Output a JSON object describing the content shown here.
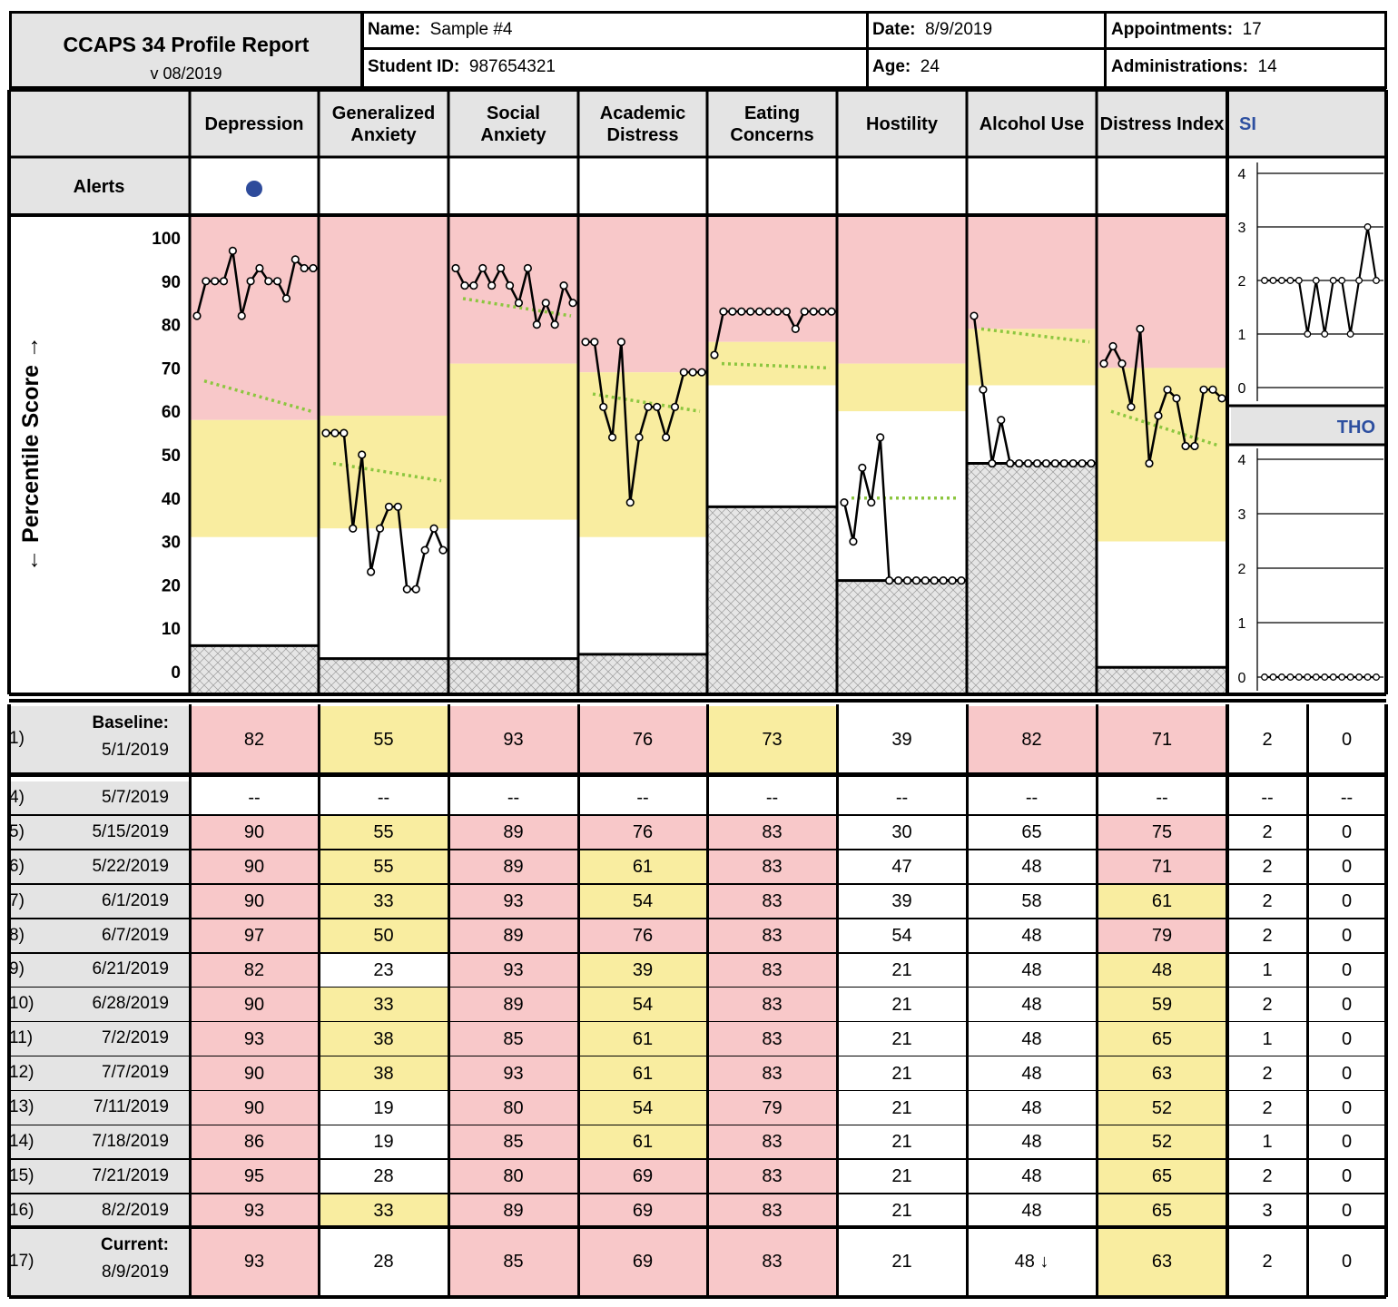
{
  "header": {
    "title": "CCAPS 34 Profile Report",
    "version": "v 08/2019",
    "name_label": "Name:",
    "name_value": "Sample #4",
    "student_id_label": "Student ID:",
    "student_id_value": "987654321",
    "date_label": "Date:",
    "date_value": "8/9/2019",
    "age_label": "Age:",
    "age_value": "24",
    "appointments_label": "Appointments:",
    "appointments_value": "17",
    "administrations_label": "Administrations:",
    "administrations_value": "14"
  },
  "alerts_label": "Alerts",
  "alerts_flag": [
    true,
    false,
    false,
    false,
    false,
    false,
    false,
    false
  ],
  "colors": {
    "pink": "#f8c8c9",
    "yellow": "#f9eda0",
    "gray": "#e4e4e4",
    "line": "#000000",
    "trend": "#8cc63f",
    "alert": "#2e4b9b",
    "si_label": "#2d4fa0"
  },
  "chart_data": {
    "type": "line",
    "ylabel": "← Percentile Score →",
    "ylim": [
      0,
      100
    ],
    "yticks": [
      "0",
      "10",
      "20",
      "30",
      "40",
      "50",
      "60",
      "70",
      "80",
      "90",
      "100"
    ],
    "scales": [
      {
        "name": "Depression",
        "label_lines": [
          "Depression"
        ],
        "values": [
          82,
          90,
          90,
          90,
          97,
          82,
          90,
          93,
          90,
          90,
          86,
          95,
          93,
          93
        ],
        "low": 6,
        "yellow": 31,
        "pink": 58,
        "trend": [
          67,
          60
        ]
      },
      {
        "name": "Generalized Anxiety",
        "label_lines": [
          "Generalized",
          "Anxiety"
        ],
        "values": [
          55,
          55,
          55,
          33,
          50,
          23,
          33,
          38,
          38,
          19,
          19,
          28,
          33,
          28
        ],
        "low": 3,
        "yellow": 33,
        "pink": 59,
        "trend": [
          48,
          44
        ]
      },
      {
        "name": "Social Anxiety",
        "label_lines": [
          "Social",
          "Anxiety"
        ],
        "values": [
          93,
          89,
          89,
          93,
          89,
          93,
          89,
          85,
          93,
          80,
          85,
          80,
          89,
          85
        ],
        "low": 3,
        "yellow": 35,
        "pink": 71,
        "trend": [
          86,
          82
        ]
      },
      {
        "name": "Academic Distress",
        "label_lines": [
          "Academic",
          "Distress"
        ],
        "values": [
          76,
          76,
          61,
          54,
          76,
          39,
          54,
          61,
          61,
          54,
          61,
          69,
          69,
          69
        ],
        "low": 4,
        "yellow": 31,
        "pink": 69,
        "trend": [
          64,
          60
        ]
      },
      {
        "name": "Eating Concerns",
        "label_lines": [
          "Eating",
          "Concerns"
        ],
        "values": [
          73,
          83,
          83,
          83,
          83,
          83,
          83,
          83,
          83,
          79,
          83,
          83,
          83,
          83
        ],
        "low": 38,
        "yellow": 66,
        "pink": 76,
        "trend": [
          71,
          70
        ]
      },
      {
        "name": "Hostility",
        "label_lines": [
          "Hostility"
        ],
        "values": [
          39,
          30,
          47,
          39,
          54,
          21,
          21,
          21,
          21,
          21,
          21,
          21,
          21,
          21
        ],
        "low": 21,
        "yellow": 60,
        "pink": 71,
        "trend": [
          40,
          40
        ]
      },
      {
        "name": "Alcohol Use",
        "label_lines": [
          "Alcohol Use"
        ],
        "values": [
          82,
          65,
          48,
          58,
          48,
          48,
          48,
          48,
          48,
          48,
          48,
          48,
          48,
          48
        ],
        "low": 48,
        "yellow": 66,
        "pink": 79,
        "trend": [
          79,
          76
        ]
      },
      {
        "name": "Distress Index",
        "label_lines": [
          "Distress Index"
        ],
        "values": [
          71,
          75,
          71,
          61,
          79,
          48,
          59,
          65,
          63,
          52,
          52,
          65,
          65,
          63
        ],
        "low": 1,
        "yellow": 30,
        "pink": 70,
        "trend": [
          60,
          52
        ]
      }
    ],
    "si": {
      "name": "SI",
      "ylim": [
        0,
        4
      ],
      "yticks": [
        "0",
        "1",
        "2",
        "3",
        "4"
      ],
      "values": [
        2,
        2,
        2,
        2,
        2,
        1,
        2,
        1,
        2,
        2,
        1,
        2,
        3,
        2
      ]
    },
    "tho": {
      "name": "THO",
      "ylim": [
        0,
        4
      ],
      "yticks": [
        "0",
        "1",
        "2",
        "3",
        "4"
      ],
      "values": [
        0,
        0,
        0,
        0,
        0,
        0,
        0,
        0,
        0,
        0,
        0,
        0,
        0,
        0
      ]
    }
  },
  "table": {
    "rows": [
      {
        "num": "1)",
        "label": "Baseline:",
        "date": "5/1/2019",
        "vals": [
          "82",
          "55",
          "93",
          "76",
          "73",
          "39",
          "82",
          "71",
          "2",
          "0"
        ],
        "colors": [
          "p",
          "y",
          "p",
          "p",
          "y",
          "w",
          "p",
          "p",
          "w",
          "w"
        ]
      },
      {
        "num": "4)",
        "label": "",
        "date": "5/7/2019",
        "vals": [
          "--",
          "--",
          "--",
          "--",
          "--",
          "--",
          "--",
          "--",
          "--",
          "--"
        ],
        "colors": [
          "w",
          "w",
          "w",
          "w",
          "w",
          "w",
          "w",
          "w",
          "w",
          "w"
        ]
      },
      {
        "num": "5)",
        "label": "",
        "date": "5/15/2019",
        "vals": [
          "90",
          "55",
          "89",
          "76",
          "83",
          "30",
          "65",
          "75",
          "2",
          "0"
        ],
        "colors": [
          "p",
          "y",
          "p",
          "p",
          "p",
          "w",
          "w",
          "p",
          "w",
          "w"
        ]
      },
      {
        "num": "6)",
        "label": "",
        "date": "5/22/2019",
        "vals": [
          "90",
          "55",
          "89",
          "61",
          "83",
          "47",
          "48",
          "71",
          "2",
          "0"
        ],
        "colors": [
          "p",
          "y",
          "p",
          "y",
          "p",
          "w",
          "w",
          "p",
          "w",
          "w"
        ]
      },
      {
        "num": "7)",
        "label": "",
        "date": "6/1/2019",
        "vals": [
          "90",
          "33",
          "93",
          "54",
          "83",
          "39",
          "58",
          "61",
          "2",
          "0"
        ],
        "colors": [
          "p",
          "y",
          "p",
          "y",
          "p",
          "w",
          "w",
          "y",
          "w",
          "w"
        ]
      },
      {
        "num": "8)",
        "label": "",
        "date": "6/7/2019",
        "vals": [
          "97",
          "50",
          "89",
          "76",
          "83",
          "54",
          "48",
          "79",
          "2",
          "0"
        ],
        "colors": [
          "p",
          "y",
          "p",
          "p",
          "p",
          "w",
          "w",
          "p",
          "w",
          "w"
        ]
      },
      {
        "num": "9)",
        "label": "",
        "date": "6/21/2019",
        "vals": [
          "82",
          "23",
          "93",
          "39",
          "83",
          "21",
          "48",
          "48",
          "1",
          "0"
        ],
        "colors": [
          "p",
          "w",
          "p",
          "y",
          "p",
          "w",
          "w",
          "y",
          "w",
          "w"
        ]
      },
      {
        "num": "10)",
        "label": "",
        "date": "6/28/2019",
        "vals": [
          "90",
          "33",
          "89",
          "54",
          "83",
          "21",
          "48",
          "59",
          "2",
          "0"
        ],
        "colors": [
          "p",
          "y",
          "p",
          "y",
          "p",
          "w",
          "w",
          "y",
          "w",
          "w"
        ]
      },
      {
        "num": "11)",
        "label": "",
        "date": "7/2/2019",
        "vals": [
          "93",
          "38",
          "85",
          "61",
          "83",
          "21",
          "48",
          "65",
          "1",
          "0"
        ],
        "colors": [
          "p",
          "y",
          "p",
          "y",
          "p",
          "w",
          "w",
          "y",
          "w",
          "w"
        ]
      },
      {
        "num": "12)",
        "label": "",
        "date": "7/7/2019",
        "vals": [
          "90",
          "38",
          "93",
          "61",
          "83",
          "21",
          "48",
          "63",
          "2",
          "0"
        ],
        "colors": [
          "p",
          "y",
          "p",
          "y",
          "p",
          "w",
          "w",
          "y",
          "w",
          "w"
        ]
      },
      {
        "num": "13)",
        "label": "",
        "date": "7/11/2019",
        "vals": [
          "90",
          "19",
          "80",
          "54",
          "79",
          "21",
          "48",
          "52",
          "2",
          "0"
        ],
        "colors": [
          "p",
          "w",
          "p",
          "y",
          "p",
          "w",
          "w",
          "y",
          "w",
          "w"
        ]
      },
      {
        "num": "14)",
        "label": "",
        "date": "7/18/2019",
        "vals": [
          "86",
          "19",
          "85",
          "61",
          "83",
          "21",
          "48",
          "52",
          "1",
          "0"
        ],
        "colors": [
          "p",
          "w",
          "p",
          "y",
          "p",
          "w",
          "w",
          "y",
          "w",
          "w"
        ]
      },
      {
        "num": "15)",
        "label": "",
        "date": "7/21/2019",
        "vals": [
          "95",
          "28",
          "80",
          "69",
          "83",
          "21",
          "48",
          "65",
          "2",
          "0"
        ],
        "colors": [
          "p",
          "w",
          "p",
          "p",
          "p",
          "w",
          "w",
          "y",
          "w",
          "w"
        ]
      },
      {
        "num": "16)",
        "label": "",
        "date": "8/2/2019",
        "vals": [
          "93",
          "33",
          "89",
          "69",
          "83",
          "21",
          "48",
          "65",
          "3",
          "0"
        ],
        "colors": [
          "p",
          "y",
          "p",
          "p",
          "p",
          "w",
          "w",
          "y",
          "w",
          "w"
        ]
      },
      {
        "num": "17)",
        "label": "Current:",
        "date": "8/9/2019",
        "vals": [
          "93",
          "28",
          "85",
          "69",
          "83",
          "21",
          "48 ↓",
          "63",
          "2",
          "0"
        ],
        "colors": [
          "p",
          "w",
          "p",
          "p",
          "p",
          "w",
          "w",
          "y",
          "w",
          "w"
        ]
      }
    ]
  }
}
